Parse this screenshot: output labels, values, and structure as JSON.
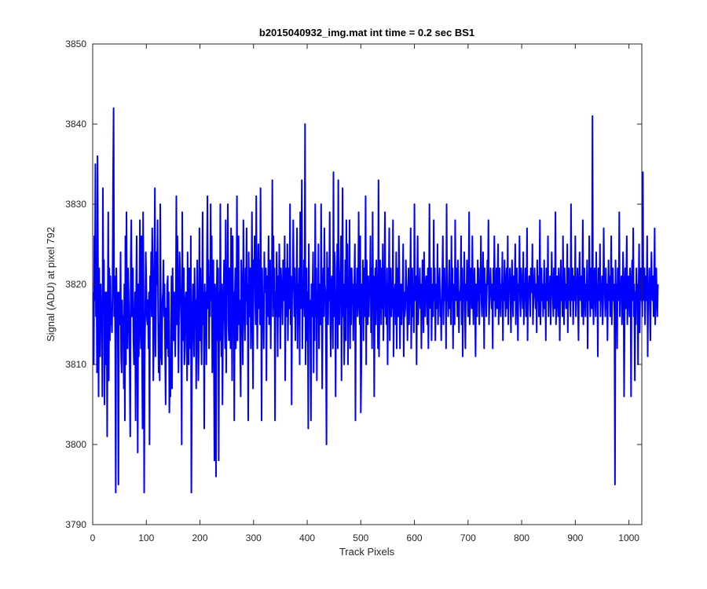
{
  "chart_data": {
    "type": "line",
    "title": "b2015040932_img.mat int time = 0.2 sec   BS1",
    "xlabel": "Track Pixels",
    "ylabel": "Signal (ADU) at pixel 792",
    "xlim": [
      0,
      1024
    ],
    "ylim": [
      3790,
      3850
    ],
    "xticks": [
      "0",
      "100",
      "200",
      "300",
      "400",
      "500",
      "600",
      "700",
      "800",
      "900",
      "1000"
    ],
    "yticks": [
      "3790",
      "3800",
      "3810",
      "3820",
      "3830",
      "3840",
      "3850"
    ],
    "grid": false,
    "legend": "none",
    "series": [
      {
        "color": "#0000ff",
        "x_start": 1,
        "x_step": 1,
        "y": [
          3819,
          3810,
          3826,
          3818,
          3835,
          3816,
          3823,
          3809,
          3836,
          3821,
          3806,
          3822,
          3814,
          3811,
          3820,
          3816,
          3818,
          3806,
          3832,
          3817,
          3823,
          3805,
          3815,
          3819,
          3810,
          3819,
          3801,
          3816,
          3829,
          3808,
          3822,
          3813,
          3821,
          3815,
          3816,
          3814,
          3819,
          3833,
          3842,
          3816,
          3821,
          3813,
          3794,
          3822,
          3817,
          3819,
          3812,
          3795,
          3819,
          3817,
          3815,
          3824,
          3811,
          3809,
          3818,
          3813,
          3816,
          3807,
          3820,
          3803,
          3826,
          3810,
          3829,
          3816,
          3812,
          3822,
          3819,
          3815,
          3810,
          3801,
          3823,
          3828,
          3816,
          3818,
          3822,
          3813,
          3810,
          3815,
          3819,
          3803,
          3818,
          3826,
          3812,
          3799,
          3820,
          3811,
          3816,
          3828,
          3815,
          3812,
          3826,
          3811,
          3802,
          3829,
          3818,
          3794,
          3811,
          3816,
          3824,
          3820,
          3816,
          3815,
          3818,
          3812,
          3819,
          3800,
          3821,
          3817,
          3824,
          3816,
          3827,
          3822,
          3808,
          3814,
          3822,
          3832,
          3811,
          3818,
          3824,
          3820,
          3828,
          3817,
          3809,
          3815,
          3808,
          3830,
          3818,
          3811,
          3810,
          3818,
          3819,
          3823,
          3816,
          3820,
          3812,
          3805,
          3817,
          3812,
          3820,
          3821,
          3811,
          3819,
          3804,
          3810,
          3806,
          3815,
          3821,
          3807,
          3822,
          3814,
          3813,
          3819,
          3816,
          3811,
          3818,
          3831,
          3815,
          3826,
          3819,
          3809,
          3816,
          3824,
          3822,
          3818,
          3815,
          3800,
          3829,
          3817,
          3813,
          3822,
          3810,
          3812,
          3818,
          3819,
          3816,
          3808,
          3824,
          3816,
          3810,
          3822,
          3819,
          3812,
          3826,
          3794,
          3809,
          3817,
          3820,
          3815,
          3811,
          3822,
          3816,
          3818,
          3807,
          3817,
          3823,
          3815,
          3808,
          3812,
          3827,
          3813,
          3822,
          3816,
          3810,
          3817,
          3829,
          3815,
          3819,
          3802,
          3820,
          3815,
          3819,
          3810,
          3822,
          3831,
          3817,
          3823,
          3812,
          3821,
          3816,
          3830,
          3818,
          3826,
          3809,
          3815,
          3823,
          3811,
          3798,
          3820,
          3819,
          3796,
          3817,
          3823,
          3813,
          3822,
          3798,
          3819,
          3813,
          3830,
          3817,
          3811,
          3820,
          3805,
          3815,
          3819,
          3823,
          3816,
          3812,
          3828,
          3809,
          3822,
          3819,
          3830,
          3815,
          3813,
          3822,
          3819,
          3812,
          3827,
          3821,
          3808,
          3826,
          3815,
          3819,
          3803,
          3818,
          3822,
          3812,
          3816,
          3831,
          3813,
          3820,
          3826,
          3815,
          3818,
          3812,
          3806,
          3823,
          3820,
          3816,
          3810,
          3828,
          3819,
          3816,
          3813,
          3822,
          3818,
          3827,
          3815,
          3820,
          3803,
          3824,
          3818,
          3816,
          3822,
          3812,
          3819,
          3829,
          3816,
          3807,
          3823,
          3820,
          3826,
          3818,
          3815,
          3831,
          3819,
          3812,
          3820,
          3825,
          3817,
          3823,
          3815,
          3832,
          3819,
          3803,
          3822,
          3816,
          3818,
          3812,
          3824,
          3819,
          3820,
          3822,
          3808,
          3821,
          3816,
          3819,
          3826,
          3815,
          3818,
          3823,
          3812,
          3820,
          3819,
          3833,
          3816,
          3826,
          3817,
          3822,
          3803,
          3819,
          3816,
          3824,
          3819,
          3811,
          3821,
          3816,
          3825,
          3819,
          3812,
          3822,
          3820,
          3819,
          3815,
          3823,
          3819,
          3818,
          3826,
          3808,
          3820,
          3822,
          3816,
          3825,
          3813,
          3818,
          3822,
          3817,
          3830,
          3815,
          3821,
          3805,
          3819,
          3820,
          3828,
          3820,
          3816,
          3822,
          3813,
          3819,
          3818,
          3827,
          3812,
          3820,
          3815,
          3822,
          3810,
          3829,
          3817,
          3822,
          3833,
          3812,
          3820,
          3817,
          3823,
          3816,
          3840,
          3810,
          3816,
          3822,
          3813,
          3819,
          3802,
          3825,
          3816,
          3818,
          3812,
          3803,
          3820,
          3816,
          3819,
          3824,
          3809,
          3820,
          3813,
          3830,
          3816,
          3822,
          3808,
          3819,
          3817,
          3825,
          3812,
          3818,
          3820,
          3815,
          3830,
          3819,
          3807,
          3817,
          3822,
          3816,
          3827,
          3820,
          3819,
          3812,
          3800,
          3824,
          3818,
          3815,
          3822,
          3818,
          3829,
          3816,
          3811,
          3820,
          3821,
          3818,
          3812,
          3834,
          3816,
          3824,
          3822,
          3806,
          3819,
          3817,
          3825,
          3812,
          3833,
          3818,
          3815,
          3820,
          3822,
          3826,
          3808,
          3819,
          3832,
          3816,
          3820,
          3810,
          3815,
          3823,
          3813,
          3828,
          3817,
          3825,
          3810,
          3818,
          3818,
          3828,
          3812,
          3822,
          3815,
          3822,
          3819,
          3820,
          3813,
          3818,
          3821,
          3825,
          3803,
          3820,
          3817,
          3822,
          3816,
          3818,
          3829,
          3819,
          3815,
          3826,
          3804,
          3810,
          3820,
          3817,
          3823,
          3813,
          3822,
          3816,
          3819,
          3831,
          3810,
          3823,
          3818,
          3815,
          3821,
          3816,
          3820,
          3819,
          3826,
          3814,
          3822,
          3812,
          3829,
          3818,
          3821,
          3806,
          3817,
          3822,
          3815,
          3823,
          3819,
          3818,
          3812,
          3833,
          3811,
          3818,
          3823,
          3820,
          3815,
          3822,
          3817,
          3825,
          3813,
          3818,
          3820,
          3829,
          3816,
          3819,
          3815,
          3822,
          3810,
          3820,
          3818,
          3827,
          3813,
          3819,
          3822,
          3816,
          3820,
          3817,
          3828,
          3811,
          3818,
          3819,
          3820,
          3815,
          3824,
          3812,
          3822,
          3819,
          3816,
          3826,
          3821,
          3812,
          3819,
          3820,
          3815,
          3818,
          3820,
          3825,
          3811,
          3819,
          3816,
          3817,
          3823,
          3820,
          3819,
          3813,
          3818,
          3822,
          3815,
          3819,
          3820,
          3827,
          3812,
          3818,
          3822,
          3816,
          3819,
          3814,
          3830,
          3818,
          3819,
          3821,
          3810,
          3820,
          3826,
          3815,
          3818,
          3819,
          3822,
          3817,
          3820,
          3812,
          3818,
          3823,
          3819,
          3814,
          3824,
          3818,
          3816,
          3820,
          3821,
          3819,
          3815,
          3822,
          3812,
          3818,
          3830,
          3819,
          3817,
          3822,
          3813,
          3819,
          3820,
          3816,
          3828,
          3818,
          3822,
          3813,
          3819,
          3820,
          3817,
          3825,
          3815,
          3819,
          3820,
          3822,
          3816,
          3818,
          3813,
          3819,
          3821,
          3826,
          3815,
          3819,
          3822,
          3818,
          3820,
          3812,
          3830,
          3818,
          3819,
          3816,
          3820,
          3823,
          3817,
          3819,
          3815,
          3826,
          3818,
          3822,
          3812,
          3819,
          3820,
          3815,
          3828,
          3818,
          3819,
          3822,
          3816,
          3823,
          3820,
          3814,
          3819,
          3818,
          3820,
          3826,
          3815,
          3822,
          3811,
          3820,
          3819,
          3824,
          3817,
          3812,
          3820,
          3818,
          3823,
          3819,
          3816,
          3820,
          3829,
          3815,
          3818,
          3822,
          3820,
          3817,
          3826,
          3819,
          3815,
          3820,
          3822,
          3818,
          3811,
          3820,
          3819,
          3816,
          3823,
          3818,
          3822,
          3815,
          3820,
          3819,
          3826,
          3818,
          3816,
          3820,
          3824,
          3819,
          3812,
          3822,
          3818,
          3820,
          3816,
          3819,
          3823,
          3820,
          3828,
          3815,
          3818,
          3820,
          3822,
          3819,
          3817,
          3820,
          3812,
          3822,
          3818,
          3826,
          3820,
          3816,
          3819,
          3822,
          3817,
          3820,
          3825,
          3815,
          3819,
          3822,
          3818,
          3816,
          3820,
          3819,
          3824,
          3813,
          3820,
          3818,
          3823,
          3819,
          3816,
          3820,
          3822,
          3817,
          3826,
          3815,
          3820,
          3819,
          3822,
          3818,
          3814,
          3820,
          3823,
          3819,
          3816,
          3821,
          3818,
          3820,
          3825,
          3815,
          3819,
          3822,
          3818,
          3813,
          3820,
          3819,
          3826,
          3818,
          3816,
          3822,
          3820,
          3819,
          3817,
          3824,
          3815,
          3820,
          3818,
          3822,
          3816,
          3819,
          3827,
          3813,
          3820,
          3819,
          3821,
          3818,
          3816,
          3822,
          3820,
          3819,
          3825,
          3815,
          3818,
          3820,
          3822,
          3819,
          3817,
          3820,
          3814,
          3823,
          3818,
          3821,
          3816,
          3820,
          3828,
          3815,
          3819,
          3822,
          3818,
          3820,
          3816,
          3819,
          3823,
          3817,
          3820,
          3813,
          3822,
          3819,
          3818,
          3826,
          3816,
          3820,
          3819,
          3821,
          3815,
          3818,
          3824,
          3820,
          3819,
          3816,
          3822,
          3817,
          3820,
          3829,
          3815,
          3818,
          3821,
          3819,
          3816,
          3822,
          3820,
          3813,
          3819,
          3823,
          3818,
          3820,
          3816,
          3826,
          3819,
          3815,
          3822,
          3818,
          3820,
          3817,
          3819,
          3825,
          3814,
          3820,
          3822,
          3818,
          3819,
          3816,
          3830,
          3818,
          3820,
          3822,
          3815,
          3819,
          3821,
          3818,
          3826,
          3816,
          3820,
          3819,
          3822,
          3817,
          3813,
          3820,
          3824,
          3819,
          3818,
          3821,
          3816,
          3820,
          3828,
          3815,
          3819,
          3822,
          3818,
          3816,
          3820,
          3819,
          3823,
          3812,
          3820,
          3818,
          3826,
          3819,
          3816,
          3822,
          3820,
          3817,
          3841,
          3818,
          3815,
          3820,
          3822,
          3819,
          3816,
          3824,
          3818,
          3820,
          3811,
          3822,
          3819,
          3818,
          3825,
          3816,
          3820,
          3819,
          3821,
          3815,
          3818,
          3827,
          3820,
          3819,
          3816,
          3822,
          3817,
          3820,
          3813,
          3819,
          3823,
          3818,
          3821,
          3816,
          3820,
          3826,
          3815,
          3819,
          3822,
          3818,
          3820,
          3816,
          3795,
          3823,
          3817,
          3820,
          3812,
          3822,
          3819,
          3818,
          3829,
          3816,
          3820,
          3819,
          3821,
          3815,
          3818,
          3824,
          3820,
          3806,
          3816,
          3822,
          3817,
          3820,
          3826,
          3815,
          3818,
          3821,
          3819,
          3816,
          3822,
          3820,
          3806,
          3819,
          3823,
          3818,
          3827,
          3816,
          3820,
          3808,
          3819,
          3815,
          3822,
          3818,
          3820,
          3810,
          3819,
          3825,
          3814,
          3820,
          3822,
          3818,
          3819,
          3816,
          3834,
          3818,
          3820,
          3822,
          3815,
          3819,
          3821,
          3818,
          3826,
          3811,
          3820,
          3819,
          3822,
          3817,
          3813,
          3820,
          3824,
          3819,
          3818,
          3821,
          3816,
          3820,
          3827,
          3815,
          3819,
          3822,
          3818,
          3816,
          3820
        ]
      }
    ]
  }
}
